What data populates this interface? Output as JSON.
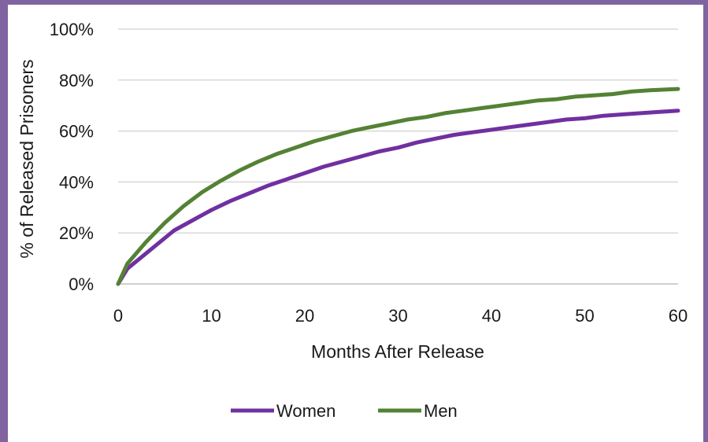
{
  "chart_data": {
    "type": "line",
    "title": "",
    "xlabel": "Months After Release",
    "ylabel": "% of Released Prisoners",
    "xlim": [
      0,
      60
    ],
    "ylim": [
      0,
      100
    ],
    "x_ticks": [
      "0",
      "10",
      "20",
      "30",
      "40",
      "50",
      "60"
    ],
    "y_ticks": [
      "0%",
      "20%",
      "40%",
      "60%",
      "80%",
      "100%"
    ],
    "grid": "horizontal",
    "legend_position": "bottom",
    "series": [
      {
        "name": "Women",
        "color": "#7030a0",
        "x": [
          0,
          1,
          3,
          6,
          8,
          10,
          12,
          14,
          16,
          18,
          20,
          22,
          24,
          26,
          28,
          30,
          32,
          34,
          36,
          38,
          40,
          42,
          44,
          46,
          48,
          50,
          52,
          54,
          56,
          58,
          60
        ],
        "y": [
          0,
          6,
          12,
          21,
          25,
          29,
          32.5,
          35.5,
          38.5,
          41,
          43.5,
          46,
          48,
          50,
          52,
          53.5,
          55.5,
          57,
          58.5,
          59.5,
          60.5,
          61.5,
          62.5,
          63.5,
          64.5,
          65,
          66,
          66.5,
          67,
          67.5,
          68
        ]
      },
      {
        "name": "Men",
        "color": "#548235",
        "x": [
          0,
          1,
          3,
          5,
          7,
          9,
          11,
          13,
          15,
          17,
          19,
          21,
          23,
          25,
          27,
          29,
          31,
          33,
          35,
          37,
          39,
          41,
          43,
          45,
          47,
          49,
          51,
          53,
          55,
          57,
          60
        ],
        "y": [
          0,
          8,
          16.5,
          24,
          30.5,
          36,
          40.5,
          44.5,
          48,
          51,
          53.5,
          56,
          58,
          60,
          61.5,
          63,
          64.5,
          65.5,
          67,
          68,
          69,
          70,
          71,
          72,
          72.5,
          73.5,
          74,
          74.5,
          75.5,
          76,
          76.5
        ]
      }
    ]
  }
}
